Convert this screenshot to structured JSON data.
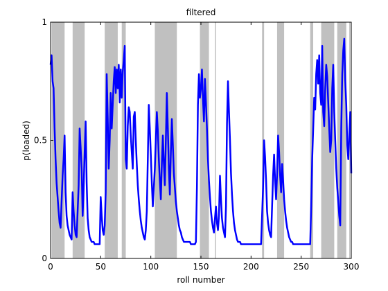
{
  "chart_data": {
    "type": "line",
    "title": "filtered",
    "xlabel": "roll number",
    "ylabel": "p(loaded)",
    "xlim": [
      0,
      300
    ],
    "ylim": [
      0,
      1
    ],
    "xticks": [
      0,
      50,
      100,
      150,
      200,
      250,
      300
    ],
    "yticks": [
      0,
      0.5,
      1
    ],
    "xtick_labels": [
      "0",
      "50",
      "100",
      "150",
      "200",
      "250",
      "300"
    ],
    "ytick_labels": [
      "0",
      "0.5",
      "1"
    ],
    "grid": false,
    "legend": "none",
    "line_color": "#0000ff",
    "shade_color": "#c0c0c0",
    "shaded_intervals": [
      [
        1,
        14
      ],
      [
        22,
        34
      ],
      [
        54,
        67
      ],
      [
        71,
        75
      ],
      [
        104,
        126
      ],
      [
        149,
        158
      ],
      [
        164,
        165
      ],
      [
        211,
        213
      ],
      [
        226,
        233
      ],
      [
        259,
        262
      ],
      [
        270,
        283
      ],
      [
        286,
        295
      ],
      [
        298,
        299
      ]
    ],
    "series": [
      {
        "values": [
          [
            0,
            0.82
          ],
          [
            1,
            0.86
          ],
          [
            2,
            0.75
          ],
          [
            3,
            0.72
          ],
          [
            4,
            0.55
          ],
          [
            5,
            0.42
          ],
          [
            6,
            0.32
          ],
          [
            7,
            0.26
          ],
          [
            8,
            0.2
          ],
          [
            9,
            0.15
          ],
          [
            10,
            0.13
          ],
          [
            11,
            0.24
          ],
          [
            12,
            0.35
          ],
          [
            13,
            0.42
          ],
          [
            14,
            0.52
          ],
          [
            15,
            0.28
          ],
          [
            16,
            0.18
          ],
          [
            17,
            0.14
          ],
          [
            18,
            0.12
          ],
          [
            19,
            0.1
          ],
          [
            20,
            0.09
          ],
          [
            21,
            0.08
          ],
          [
            22,
            0.28
          ],
          [
            23,
            0.2
          ],
          [
            24,
            0.14
          ],
          [
            25,
            0.1
          ],
          [
            26,
            0.09
          ],
          [
            27,
            0.2
          ],
          [
            28,
            0.31
          ],
          [
            29,
            0.55
          ],
          [
            30,
            0.47
          ],
          [
            31,
            0.38
          ],
          [
            32,
            0.18
          ],
          [
            33,
            0.3
          ],
          [
            34,
            0.45
          ],
          [
            35,
            0.58
          ],
          [
            36,
            0.32
          ],
          [
            37,
            0.17
          ],
          [
            38,
            0.12
          ],
          [
            39,
            0.09
          ],
          [
            40,
            0.08
          ],
          [
            41,
            0.07
          ],
          [
            42,
            0.07
          ],
          [
            43,
            0.07
          ],
          [
            44,
            0.06
          ],
          [
            45,
            0.06
          ],
          [
            46,
            0.06
          ],
          [
            47,
            0.06
          ],
          [
            48,
            0.06
          ],
          [
            49,
            0.06
          ],
          [
            50,
            0.26
          ],
          [
            51,
            0.18
          ],
          [
            52,
            0.12
          ],
          [
            53,
            0.1
          ],
          [
            54,
            0.14
          ],
          [
            55,
            0.28
          ],
          [
            56,
            0.78
          ],
          [
            57,
            0.6
          ],
          [
            58,
            0.38
          ],
          [
            59,
            0.5
          ],
          [
            60,
            0.7
          ],
          [
            61,
            0.55
          ],
          [
            62,
            0.65
          ],
          [
            63,
            0.75
          ],
          [
            64,
            0.81
          ],
          [
            65,
            0.7
          ],
          [
            66,
            0.8
          ],
          [
            67,
            0.72
          ],
          [
            68,
            0.82
          ],
          [
            69,
            0.66
          ],
          [
            70,
            0.8
          ],
          [
            71,
            0.68
          ],
          [
            72,
            0.79
          ],
          [
            73,
            0.84
          ],
          [
            74,
            0.9
          ],
          [
            75,
            0.42
          ],
          [
            76,
            0.38
          ],
          [
            77,
            0.56
          ],
          [
            78,
            0.64
          ],
          [
            79,
            0.62
          ],
          [
            80,
            0.52
          ],
          [
            81,
            0.45
          ],
          [
            82,
            0.38
          ],
          [
            83,
            0.6
          ],
          [
            84,
            0.62
          ],
          [
            85,
            0.5
          ],
          [
            86,
            0.4
          ],
          [
            87,
            0.31
          ],
          [
            88,
            0.25
          ],
          [
            89,
            0.2
          ],
          [
            90,
            0.16
          ],
          [
            91,
            0.13
          ],
          [
            92,
            0.11
          ],
          [
            93,
            0.09
          ],
          [
            94,
            0.08
          ],
          [
            95,
            0.12
          ],
          [
            96,
            0.2
          ],
          [
            97,
            0.42
          ],
          [
            98,
            0.65
          ],
          [
            99,
            0.55
          ],
          [
            100,
            0.44
          ],
          [
            101,
            0.32
          ],
          [
            102,
            0.22
          ],
          [
            103,
            0.3
          ],
          [
            104,
            0.38
          ],
          [
            105,
            0.5
          ],
          [
            106,
            0.62
          ],
          [
            107,
            0.54
          ],
          [
            108,
            0.42
          ],
          [
            109,
            0.33
          ],
          [
            110,
            0.25
          ],
          [
            111,
            0.4
          ],
          [
            112,
            0.52
          ],
          [
            113,
            0.4
          ],
          [
            114,
            0.31
          ],
          [
            115,
            0.5
          ],
          [
            116,
            0.7
          ],
          [
            117,
            0.55
          ],
          [
            118,
            0.38
          ],
          [
            119,
            0.27
          ],
          [
            120,
            0.45
          ],
          [
            121,
            0.59
          ],
          [
            122,
            0.48
          ],
          [
            123,
            0.36
          ],
          [
            124,
            0.3
          ],
          [
            125,
            0.24
          ],
          [
            126,
            0.2
          ],
          [
            127,
            0.17
          ],
          [
            128,
            0.14
          ],
          [
            129,
            0.12
          ],
          [
            130,
            0.11
          ],
          [
            131,
            0.09
          ],
          [
            132,
            0.08
          ],
          [
            133,
            0.07
          ],
          [
            134,
            0.07
          ],
          [
            135,
            0.07
          ],
          [
            136,
            0.07
          ],
          [
            137,
            0.07
          ],
          [
            138,
            0.07
          ],
          [
            139,
            0.07
          ],
          [
            140,
            0.06
          ],
          [
            141,
            0.06
          ],
          [
            142,
            0.06
          ],
          [
            143,
            0.06
          ],
          [
            144,
            0.06
          ],
          [
            145,
            0.07
          ],
          [
            146,
            0.3
          ],
          [
            147,
            0.65
          ],
          [
            148,
            0.78
          ],
          [
            149,
            0.68
          ],
          [
            150,
            0.72
          ],
          [
            151,
            0.8
          ],
          [
            152,
            0.68
          ],
          [
            153,
            0.58
          ],
          [
            154,
            0.76
          ],
          [
            155,
            0.66
          ],
          [
            156,
            0.55
          ],
          [
            157,
            0.42
          ],
          [
            158,
            0.33
          ],
          [
            159,
            0.26
          ],
          [
            160,
            0.2
          ],
          [
            161,
            0.16
          ],
          [
            162,
            0.13
          ],
          [
            163,
            0.11
          ],
          [
            164,
            0.17
          ],
          [
            165,
            0.22
          ],
          [
            166,
            0.15
          ],
          [
            167,
            0.12
          ],
          [
            168,
            0.18
          ],
          [
            169,
            0.35
          ],
          [
            170,
            0.25
          ],
          [
            171,
            0.17
          ],
          [
            172,
            0.13
          ],
          [
            173,
            0.11
          ],
          [
            174,
            0.09
          ],
          [
            175,
            0.22
          ],
          [
            176,
            0.57
          ],
          [
            177,
            0.75
          ],
          [
            178,
            0.62
          ],
          [
            179,
            0.5
          ],
          [
            180,
            0.36
          ],
          [
            181,
            0.27
          ],
          [
            182,
            0.2
          ],
          [
            183,
            0.15
          ],
          [
            184,
            0.12
          ],
          [
            185,
            0.1
          ],
          [
            186,
            0.08
          ],
          [
            187,
            0.07
          ],
          [
            188,
            0.07
          ],
          [
            189,
            0.07
          ],
          [
            190,
            0.06
          ],
          [
            191,
            0.06
          ],
          [
            192,
            0.06
          ],
          [
            193,
            0.06
          ],
          [
            194,
            0.06
          ],
          [
            195,
            0.06
          ],
          [
            196,
            0.06
          ],
          [
            197,
            0.06
          ],
          [
            198,
            0.06
          ],
          [
            199,
            0.06
          ],
          [
            200,
            0.06
          ],
          [
            201,
            0.06
          ],
          [
            202,
            0.06
          ],
          [
            203,
            0.06
          ],
          [
            204,
            0.06
          ],
          [
            205,
            0.06
          ],
          [
            206,
            0.06
          ],
          [
            207,
            0.06
          ],
          [
            208,
            0.06
          ],
          [
            209,
            0.06
          ],
          [
            210,
            0.06
          ],
          [
            211,
            0.18
          ],
          [
            212,
            0.3
          ],
          [
            213,
            0.5
          ],
          [
            214,
            0.43
          ],
          [
            215,
            0.33
          ],
          [
            216,
            0.2
          ],
          [
            217,
            0.15
          ],
          [
            218,
            0.12
          ],
          [
            219,
            0.1
          ],
          [
            220,
            0.09
          ],
          [
            221,
            0.22
          ],
          [
            222,
            0.35
          ],
          [
            223,
            0.44
          ],
          [
            224,
            0.33
          ],
          [
            225,
            0.25
          ],
          [
            226,
            0.36
          ],
          [
            227,
            0.52
          ],
          [
            228,
            0.45
          ],
          [
            229,
            0.35
          ],
          [
            230,
            0.28
          ],
          [
            231,
            0.4
          ],
          [
            232,
            0.33
          ],
          [
            233,
            0.25
          ],
          [
            234,
            0.2
          ],
          [
            235,
            0.16
          ],
          [
            236,
            0.13
          ],
          [
            237,
            0.11
          ],
          [
            238,
            0.09
          ],
          [
            239,
            0.08
          ],
          [
            240,
            0.07
          ],
          [
            241,
            0.07
          ],
          [
            242,
            0.06
          ],
          [
            243,
            0.06
          ],
          [
            244,
            0.06
          ],
          [
            245,
            0.06
          ],
          [
            246,
            0.06
          ],
          [
            247,
            0.06
          ],
          [
            248,
            0.06
          ],
          [
            249,
            0.06
          ],
          [
            250,
            0.06
          ],
          [
            251,
            0.06
          ],
          [
            252,
            0.06
          ],
          [
            253,
            0.06
          ],
          [
            254,
            0.06
          ],
          [
            255,
            0.06
          ],
          [
            256,
            0.06
          ],
          [
            257,
            0.06
          ],
          [
            258,
            0.06
          ],
          [
            259,
            0.06
          ],
          [
            260,
            0.22
          ],
          [
            261,
            0.42
          ],
          [
            262,
            0.55
          ],
          [
            263,
            0.68
          ],
          [
            264,
            0.63
          ],
          [
            265,
            0.78
          ],
          [
            266,
            0.84
          ],
          [
            267,
            0.74
          ],
          [
            268,
            0.86
          ],
          [
            269,
            0.7
          ],
          [
            270,
            0.65
          ],
          [
            271,
            0.9
          ],
          [
            272,
            0.62
          ],
          [
            273,
            0.56
          ],
          [
            274,
            0.72
          ],
          [
            275,
            0.82
          ],
          [
            276,
            0.77
          ],
          [
            277,
            0.66
          ],
          [
            278,
            0.55
          ],
          [
            279,
            0.45
          ],
          [
            280,
            0.5
          ],
          [
            281,
            0.72
          ],
          [
            282,
            0.82
          ],
          [
            283,
            0.62
          ],
          [
            284,
            0.5
          ],
          [
            285,
            0.38
          ],
          [
            286,
            0.3
          ],
          [
            287,
            0.24
          ],
          [
            288,
            0.18
          ],
          [
            289,
            0.14
          ],
          [
            290,
            0.55
          ],
          [
            291,
            0.78
          ],
          [
            292,
            0.88
          ],
          [
            293,
            0.93
          ],
          [
            294,
            0.75
          ],
          [
            295,
            0.65
          ],
          [
            296,
            0.48
          ],
          [
            297,
            0.42
          ],
          [
            298,
            0.52
          ],
          [
            299,
            0.62
          ],
          [
            300,
            0.36
          ]
        ]
      }
    ]
  }
}
